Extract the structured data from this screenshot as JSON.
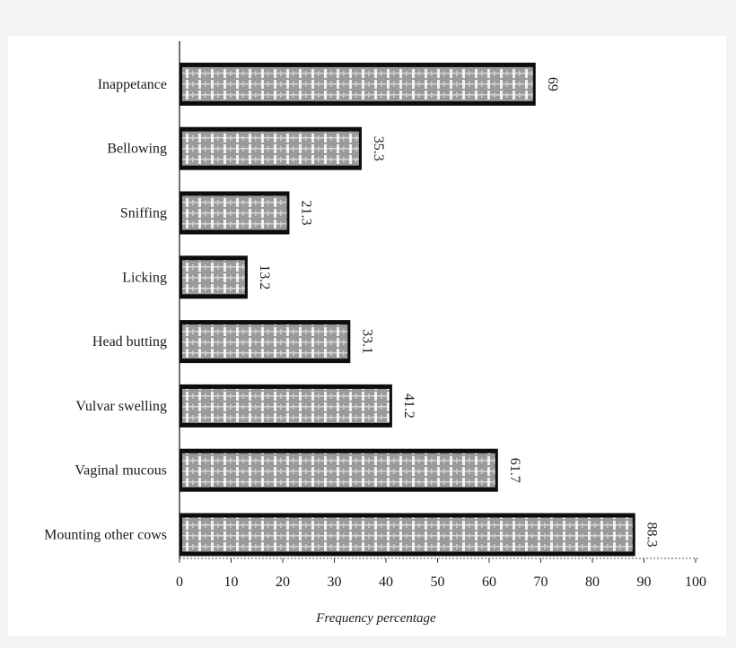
{
  "chart_data": {
    "type": "bar",
    "orientation": "horizontal",
    "categories": [
      "Inappetance",
      "Bellowing",
      "Sniffing",
      "Licking",
      "Head butting",
      "Vulvar swelling",
      "Vaginal mucous",
      "Mounting other cows"
    ],
    "values": [
      69,
      35.3,
      21.3,
      13.2,
      33.1,
      41.2,
      61.7,
      88.3
    ],
    "value_labels": [
      "69",
      "35.3",
      "21.3",
      "13.2",
      "33.1",
      "41.2",
      "61.7",
      "88.3"
    ],
    "title": "",
    "xlabel": "Frequency percentage",
    "ylabel": "",
    "xlim": [
      0,
      100
    ],
    "x_ticks": [
      "0",
      "10",
      "20",
      "30",
      "40",
      "50",
      "60",
      "70",
      "80",
      "90",
      "100"
    ],
    "grid": false,
    "legend": "none",
    "colors": {
      "bar_border": "#0d0d0d",
      "bar_fill": "#9a9a9a",
      "bar_texture": "#ffffff",
      "text": "#1a1a1a"
    }
  }
}
